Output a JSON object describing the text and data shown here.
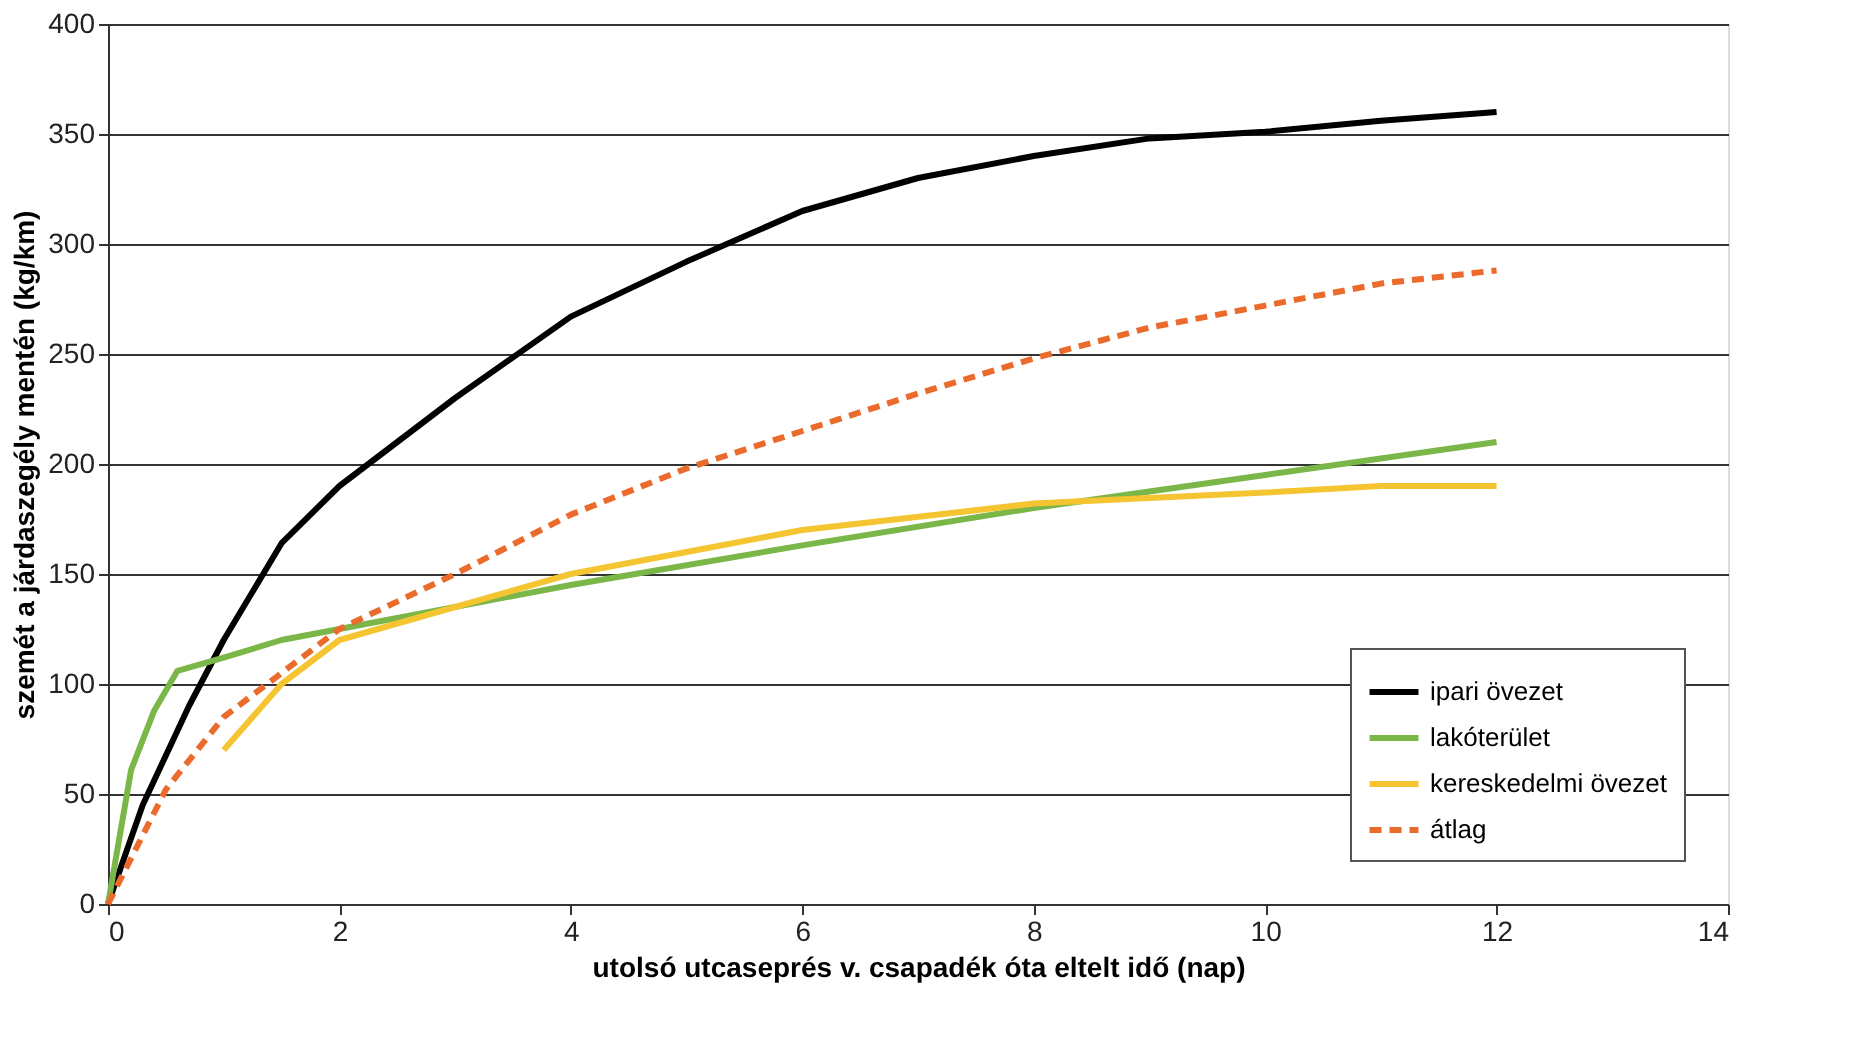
{
  "chart_data": {
    "type": "line",
    "xlabel": "utolsó utcaseprés v. csapadék óta eltelt idő (nap)",
    "ylabel": "szemét a járdaszegély mentén (kg/km)",
    "xlim": [
      0,
      14
    ],
    "xticks": [
      0,
      2,
      4,
      6,
      8,
      10,
      12,
      14
    ],
    "ylim": [
      0,
      400
    ],
    "yticks": [
      0,
      50,
      100,
      150,
      200,
      250,
      300,
      350,
      400
    ],
    "grid": "y",
    "legend": "bottom right",
    "marker": "none",
    "series": [
      {
        "name": "ipari övezet",
        "color": "#000000",
        "line_style": "solid",
        "x": [
          0,
          0.3,
          0.7,
          1,
          1.5,
          2,
          3,
          4,
          5,
          6,
          7,
          8,
          9,
          10,
          11,
          12
        ],
        "values": [
          0,
          45,
          90,
          120,
          164,
          190,
          230,
          267,
          292,
          315,
          330,
          340,
          348,
          351,
          356,
          360
        ]
      },
      {
        "name": "lakóterület",
        "color": "#7ab648",
        "line_style": "solid",
        "x": [
          0,
          0.2,
          0.4,
          0.6,
          1,
          1.5,
          2,
          4,
          6,
          8,
          10,
          12
        ],
        "values": [
          0,
          61,
          88,
          106,
          112,
          120,
          125,
          145,
          163,
          180,
          195,
          210
        ]
      },
      {
        "name": "kereskedelmi övezet",
        "color": "#f5c431",
        "line_style": "solid",
        "x": [
          1,
          1.5,
          2,
          3,
          4,
          5,
          6,
          8,
          10,
          11,
          12
        ],
        "values": [
          70,
          100,
          120,
          135,
          150,
          160,
          170,
          182,
          187,
          190,
          190
        ]
      },
      {
        "name": "átlag",
        "color": "#eb6b2c",
        "line_style": "dashed",
        "x": [
          0,
          0.5,
          1,
          1.5,
          2,
          3,
          4,
          5,
          6,
          7,
          8,
          9,
          10,
          11,
          12
        ],
        "values": [
          0,
          52,
          85,
          105,
          125,
          150,
          177,
          198,
          215,
          232,
          248,
          262,
          272,
          282,
          288
        ]
      }
    ]
  }
}
